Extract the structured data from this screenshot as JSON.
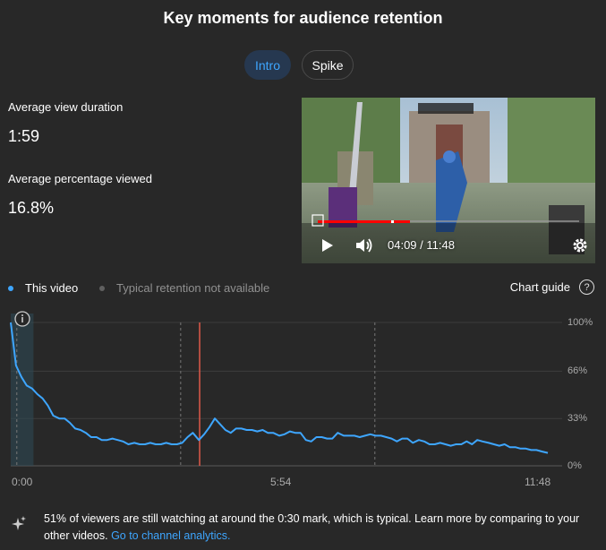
{
  "header": {
    "title": "Key moments for audience retention"
  },
  "tabs": [
    {
      "label": "Intro",
      "active": true
    },
    {
      "label": "Spike",
      "active": false
    }
  ],
  "stats": {
    "avg_view_duration_label": "Average view duration",
    "avg_view_duration_value": "1:59",
    "avg_pct_viewed_label": "Average percentage viewed",
    "avg_pct_viewed_value": "16.8%"
  },
  "video_player": {
    "time_display": "04:09 / 11:48",
    "progress_fraction": 0.353,
    "controls": [
      "play-icon",
      "volume-icon",
      "settings-gear-icon"
    ]
  },
  "legend": {
    "this_video": "This video",
    "typical": "Typical retention not available",
    "this_video_color": "#3ea6ff",
    "typical_color": "#606060"
  },
  "chart_guide": {
    "label": "Chart guide"
  },
  "chart_data": {
    "type": "line",
    "x_ticks": [
      "0:00",
      "5:54",
      "11:48"
    ],
    "y_ticks": [
      "100%",
      "66%",
      "33%",
      "0%"
    ],
    "ylim": [
      0,
      100
    ],
    "x_range_seconds": [
      0,
      708
    ],
    "highlight_segment_seconds": [
      0,
      30
    ],
    "current_position_seconds": 249,
    "series": [
      {
        "name": "This video",
        "color": "#3ea6ff",
        "x": [
          0,
          7,
          14,
          21,
          28,
          35,
          42,
          49,
          56,
          64,
          71,
          78,
          85,
          92,
          99,
          106,
          113,
          120,
          127,
          134,
          141,
          148,
          155,
          163,
          170,
          177,
          184,
          191,
          198,
          205,
          212,
          219,
          226,
          233,
          240,
          248,
          255,
          262,
          269,
          276,
          283,
          290,
          297,
          304,
          311,
          318,
          325,
          332,
          339,
          346,
          354,
          361,
          368,
          375,
          382,
          389,
          396,
          403,
          410,
          417,
          424,
          431,
          439,
          446,
          453,
          460,
          467,
          474,
          481,
          488,
          495,
          502,
          509,
          516,
          523,
          530,
          538,
          545,
          552,
          559,
          566,
          573,
          580,
          587,
          594,
          601,
          608,
          615,
          622,
          630,
          637,
          644,
          651,
          658,
          665,
          672,
          679,
          686,
          693,
          700,
          708
        ],
        "values": [
          100,
          70,
          62,
          56,
          54,
          50,
          47,
          42,
          35,
          33,
          33,
          30,
          26,
          25,
          23,
          20,
          20,
          18,
          18,
          19,
          18,
          17,
          15,
          16,
          15,
          15,
          16,
          15,
          15,
          16,
          15,
          15,
          16,
          20,
          23,
          18,
          22,
          27,
          33,
          29,
          25,
          23,
          26,
          26,
          25,
          25,
          24,
          25,
          23,
          23,
          21,
          22,
          24,
          23,
          23,
          18,
          17,
          20,
          20,
          19,
          19,
          23,
          21,
          21,
          21,
          20,
          21,
          22,
          21,
          21,
          20,
          19,
          17,
          19,
          19,
          16,
          18,
          17,
          15,
          15,
          16,
          15,
          14,
          15,
          15,
          17,
          15,
          18,
          17,
          16,
          15,
          14,
          15,
          13,
          13,
          12,
          12,
          11,
          11,
          10,
          9
        ]
      }
    ]
  },
  "insight": {
    "text": "51% of viewers are still watching at around the 0:30 mark, which is typical. Learn more by comparing to your other videos.",
    "link": "Go to channel analytics."
  }
}
